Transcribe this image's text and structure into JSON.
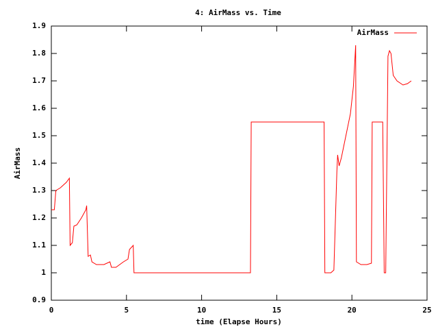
{
  "chart_data": {
    "type": "line",
    "title": "4: AirMass vs. Time",
    "x_label": "time (Elapse Hours)",
    "y_label": "AirMass",
    "xlim": [
      0,
      25
    ],
    "xticks": [
      0,
      5,
      10,
      15,
      20,
      25
    ],
    "ylim": [
      0.9,
      1.9
    ],
    "yticks": [
      0.9,
      1,
      1.1,
      1.2,
      1.3,
      1.4,
      1.5,
      1.6,
      1.7,
      1.8,
      1.9
    ],
    "legend": "top-right",
    "grid": false,
    "series": [
      {
        "name": "AirMass",
        "color": "#ff0000",
        "x": [
          0,
          0.2,
          0.3,
          0.6,
          1.0,
          1.2,
          1.25,
          1.4,
          1.5,
          1.7,
          2.0,
          2.3,
          2.35,
          2.45,
          2.6,
          2.7,
          3.0,
          3.5,
          3.9,
          4.0,
          4.3,
          4.8,
          5.1,
          5.2,
          5.45,
          5.5,
          13.25,
          13.3,
          18.15,
          18.2,
          18.6,
          18.8,
          19.0,
          19.05,
          19.15,
          19.3,
          19.6,
          19.9,
          20.1,
          20.2,
          20.25,
          20.3,
          20.6,
          21.0,
          21.3,
          21.35,
          22.05,
          22.15,
          22.25,
          22.4,
          22.5,
          22.6,
          22.75,
          23.0,
          23.4,
          23.7,
          23.95
        ],
        "values": [
          1.23,
          1.23,
          1.3,
          1.31,
          1.33,
          1.345,
          1.1,
          1.11,
          1.17,
          1.175,
          1.2,
          1.23,
          1.245,
          1.06,
          1.065,
          1.04,
          1.03,
          1.03,
          1.04,
          1.02,
          1.02,
          1.04,
          1.05,
          1.085,
          1.1,
          1.0,
          1.0,
          1.55,
          1.55,
          1.0,
          1.0,
          1.01,
          1.37,
          1.43,
          1.39,
          1.42,
          1.5,
          1.58,
          1.68,
          1.78,
          1.83,
          1.04,
          1.03,
          1.03,
          1.035,
          1.55,
          1.55,
          1.0,
          1.0,
          1.79,
          1.81,
          1.8,
          1.72,
          1.7,
          1.685,
          1.69,
          1.7
        ]
      }
    ]
  }
}
